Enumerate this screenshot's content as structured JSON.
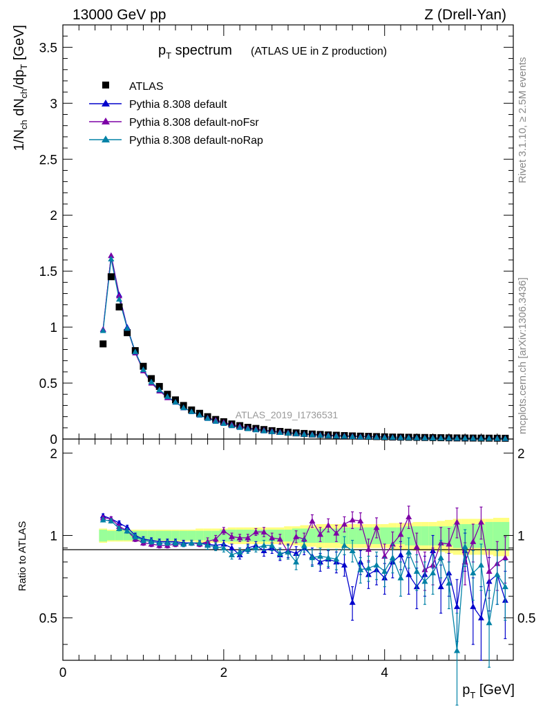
{
  "header": {
    "left": "13000 GeV pp",
    "right": "Z (Drell-Yan)"
  },
  "title": {
    "main": "p",
    "main_sub": "T",
    "main_rest": " spectrum",
    "subtitle": "(ATLAS UE in Z production)"
  },
  "side_text": {
    "rivet": "Rivet 3.1.10, ≥ 2.5M events",
    "mcplots": "mcplots.cern.ch [arXiv:1306.3436]"
  },
  "watermark": "ATLAS_2019_I1736531",
  "axes": {
    "top_ylabel": "1/N_ch dN_ch/dp_T [GeV]",
    "bottom_ylabel": "Ratio to ATLAS",
    "xlabel": "p_T [GeV]",
    "top_yticks": [
      "0",
      "0.5",
      "1",
      "1.5",
      "2",
      "2.5",
      "3",
      "3.5"
    ],
    "bottom_yticks": [
      "0.5",
      "1",
      "2"
    ],
    "xticks": [
      "0",
      "2",
      "4"
    ]
  },
  "colors": {
    "data": "#000000",
    "default": "#0000cc",
    "noFsr": "#7d00a6",
    "noRap": "#0082a6",
    "band_inner": "#99ff99",
    "band_outer": "#ffff80"
  },
  "chart_data": [
    {
      "type": "scatter",
      "title": "p_T spectrum (ATLAS UE in Z production)",
      "xlabel": "p_T [GeV]",
      "ylabel": "1/N_ch dN_ch/dp_T [GeV]",
      "xlim": [
        0,
        5.6
      ],
      "ylim": [
        0,
        3.7
      ],
      "x": [
        0.5,
        0.6,
        0.7,
        0.8,
        0.9,
        1.0,
        1.1,
        1.2,
        1.3,
        1.4,
        1.5,
        1.6,
        1.7,
        1.8,
        1.9,
        2.0,
        2.1,
        2.2,
        2.3,
        2.4,
        2.5,
        2.6,
        2.7,
        2.8,
        2.9,
        3.0,
        3.1,
        3.2,
        3.3,
        3.4,
        3.5,
        3.6,
        3.7,
        3.8,
        3.9,
        4.0,
        4.1,
        4.2,
        4.3,
        4.4,
        4.5,
        4.6,
        4.7,
        4.8,
        4.9,
        5.0,
        5.1,
        5.2,
        5.3,
        5.4,
        5.5
      ],
      "series": [
        {
          "name": "ATLAS",
          "values": [
            0.85,
            1.45,
            1.18,
            0.95,
            0.79,
            0.65,
            0.54,
            0.47,
            0.4,
            0.35,
            0.3,
            0.26,
            0.23,
            0.2,
            0.175,
            0.155,
            0.135,
            0.12,
            0.105,
            0.095,
            0.085,
            0.075,
            0.068,
            0.061,
            0.055,
            0.05,
            0.045,
            0.041,
            0.037,
            0.034,
            0.031,
            0.028,
            0.026,
            0.024,
            0.022,
            0.02,
            0.018,
            0.017,
            0.016,
            0.015,
            0.014,
            0.013,
            0.012,
            0.011,
            0.01,
            0.0095,
            0.009,
            0.0085,
            0.008,
            0.0075,
            0.007
          ]
        },
        {
          "name": "Pythia 8.308 default",
          "values": [
            0.98,
            1.64,
            1.29,
            1.0,
            0.78,
            0.62,
            0.51,
            0.44,
            0.38,
            0.33,
            0.28,
            0.245,
            0.215,
            0.185,
            0.16,
            0.14,
            0.12,
            0.105,
            0.093,
            0.083,
            0.074,
            0.066,
            0.059,
            0.053,
            0.048,
            0.043,
            0.039,
            0.035,
            0.031,
            0.028,
            0.026,
            0.023,
            0.021,
            0.019,
            0.018,
            0.016,
            0.015,
            0.014,
            0.013,
            0.012,
            0.011,
            0.01,
            0.0095,
            0.009,
            0.0085,
            0.008,
            0.0075,
            0.007,
            0.0065,
            0.006,
            0.0055
          ]
        },
        {
          "name": "Pythia 8.308 default-noFsr",
          "values": [
            0.98,
            1.64,
            1.28,
            0.99,
            0.77,
            0.61,
            0.5,
            0.43,
            0.37,
            0.33,
            0.28,
            0.245,
            0.215,
            0.19,
            0.17,
            0.15,
            0.13,
            0.115,
            0.1,
            0.09,
            0.08,
            0.072,
            0.065,
            0.058,
            0.052,
            0.047,
            0.043,
            0.039,
            0.035,
            0.032,
            0.029,
            0.027,
            0.025,
            0.023,
            0.021,
            0.019,
            0.017,
            0.016,
            0.015,
            0.014,
            0.013,
            0.012,
            0.011,
            0.0105,
            0.01,
            0.0095,
            0.009,
            0.0085,
            0.008,
            0.0075,
            0.007
          ]
        },
        {
          "name": "Pythia 8.308 default-noRap",
          "values": [
            0.97,
            1.61,
            1.25,
            0.99,
            0.78,
            0.62,
            0.51,
            0.44,
            0.38,
            0.33,
            0.28,
            0.245,
            0.215,
            0.185,
            0.16,
            0.14,
            0.12,
            0.105,
            0.093,
            0.083,
            0.074,
            0.066,
            0.059,
            0.053,
            0.048,
            0.043,
            0.039,
            0.035,
            0.031,
            0.028,
            0.026,
            0.023,
            0.021,
            0.019,
            0.018,
            0.016,
            0.015,
            0.014,
            0.013,
            0.012,
            0.011,
            0.01,
            0.0095,
            0.009,
            0.0085,
            0.008,
            0.0075,
            0.007,
            0.0065,
            0.006,
            0.0055
          ]
        }
      ]
    },
    {
      "type": "line",
      "title": "",
      "xlabel": "p_T [GeV]",
      "ylabel": "Ratio to ATLAS",
      "xlim": [
        0,
        5.6
      ],
      "ylim": [
        0.35,
        2.25
      ],
      "x": [
        0.5,
        0.6,
        0.7,
        0.8,
        0.9,
        1.0,
        1.1,
        1.2,
        1.3,
        1.4,
        1.5,
        1.6,
        1.7,
        1.8,
        1.9,
        2.0,
        2.1,
        2.2,
        2.3,
        2.4,
        2.5,
        2.6,
        2.7,
        2.8,
        2.9,
        3.0,
        3.1,
        3.2,
        3.3,
        3.4,
        3.5,
        3.6,
        3.7,
        3.8,
        3.9,
        4.0,
        4.1,
        4.2,
        4.3,
        4.4,
        4.5,
        4.6,
        4.7,
        4.8,
        4.9,
        5.0,
        5.1,
        5.2,
        5.3,
        5.4,
        5.5
      ],
      "band_inner": [
        0.05,
        0.04,
        0.04,
        0.04,
        0.04,
        0.04,
        0.04,
        0.04,
        0.04,
        0.04,
        0.04,
        0.04,
        0.04,
        0.04,
        0.04,
        0.05,
        0.05,
        0.05,
        0.05,
        0.05,
        0.05,
        0.05,
        0.05,
        0.05,
        0.06,
        0.06,
        0.06,
        0.06,
        0.06,
        0.06,
        0.07,
        0.07,
        0.07,
        0.07,
        0.07,
        0.07,
        0.07,
        0.07,
        0.08,
        0.08,
        0.08,
        0.08,
        0.08,
        0.08,
        0.1,
        0.1,
        0.1,
        0.1,
        0.12,
        0.12,
        0.12
      ],
      "band_outer": [
        0.06,
        0.05,
        0.05,
        0.05,
        0.05,
        0.05,
        0.05,
        0.05,
        0.05,
        0.05,
        0.05,
        0.05,
        0.06,
        0.06,
        0.06,
        0.06,
        0.07,
        0.07,
        0.07,
        0.07,
        0.07,
        0.07,
        0.07,
        0.08,
        0.08,
        0.09,
        0.09,
        0.1,
        0.1,
        0.1,
        0.1,
        0.1,
        0.1,
        0.1,
        0.1,
        0.1,
        0.11,
        0.11,
        0.11,
        0.12,
        0.12,
        0.12,
        0.13,
        0.14,
        0.15,
        0.15,
        0.15,
        0.15,
        0.15,
        0.16,
        0.16
      ],
      "series": [
        {
          "name": "Pythia 8.308 default",
          "values": [
            1.18,
            1.15,
            1.11,
            1.07,
            1.0,
            0.97,
            0.96,
            0.95,
            0.95,
            0.95,
            0.94,
            0.94,
            0.94,
            0.93,
            0.92,
            0.93,
            0.9,
            0.85,
            0.9,
            0.92,
            0.88,
            0.9,
            0.85,
            0.88,
            0.86,
            0.9,
            0.84,
            0.8,
            0.82,
            0.8,
            0.78,
            0.57,
            0.8,
            0.72,
            0.75,
            0.7,
            0.8,
            0.85,
            0.72,
            0.65,
            0.72,
            0.88,
            0.65,
            0.73,
            0.55,
            0.88,
            0.55,
            0.5,
            0.68,
            0.72,
            0.58
          ],
          "errors": [
            0.02,
            0.02,
            0.02,
            0.02,
            0.02,
            0.02,
            0.02,
            0.02,
            0.02,
            0.02,
            0.02,
            0.02,
            0.02,
            0.02,
            0.03,
            0.03,
            0.03,
            0.03,
            0.03,
            0.03,
            0.04,
            0.04,
            0.04,
            0.05,
            0.05,
            0.05,
            0.06,
            0.06,
            0.06,
            0.07,
            0.07,
            0.08,
            0.08,
            0.08,
            0.09,
            0.09,
            0.1,
            0.1,
            0.11,
            0.11,
            0.12,
            0.12,
            0.13,
            0.13,
            0.14,
            0.14,
            0.15,
            0.15,
            0.15,
            0.16,
            0.16
          ]
        },
        {
          "name": "Pythia 8.308 default-noFsr",
          "values": [
            1.16,
            1.15,
            1.08,
            1.04,
            0.97,
            0.94,
            0.93,
            0.92,
            0.92,
            0.93,
            0.93,
            0.94,
            0.93,
            0.95,
            0.97,
            1.04,
            0.99,
            0.98,
            0.98,
            1.03,
            1.03,
            0.98,
            0.97,
            0.87,
            0.99,
            0.97,
            1.13,
            1.01,
            1.09,
            1.02,
            1.1,
            1.14,
            1.13,
            0.89,
            1.07,
            0.84,
            0.93,
            1.01,
            1.17,
            0.91,
            0.75,
            0.78,
            0.94,
            0.93,
            1.12,
            0.8,
            0.95,
            1.12,
            0.74,
            0.79,
            0.83
          ],
          "errors": [
            0.02,
            0.02,
            0.02,
            0.02,
            0.02,
            0.02,
            0.02,
            0.02,
            0.02,
            0.02,
            0.02,
            0.02,
            0.02,
            0.03,
            0.03,
            0.03,
            0.03,
            0.03,
            0.03,
            0.03,
            0.04,
            0.04,
            0.04,
            0.05,
            0.05,
            0.05,
            0.06,
            0.06,
            0.06,
            0.07,
            0.07,
            0.08,
            0.08,
            0.08,
            0.09,
            0.09,
            0.1,
            0.1,
            0.11,
            0.11,
            0.12,
            0.12,
            0.13,
            0.13,
            0.14,
            0.14,
            0.15,
            0.15,
            0.15,
            0.16,
            0.16
          ]
        },
        {
          "name": "Pythia 8.308 default-noRap",
          "values": [
            1.14,
            1.13,
            1.06,
            1.04,
            0.99,
            0.96,
            0.95,
            0.94,
            0.94,
            0.94,
            0.93,
            0.94,
            0.94,
            0.92,
            0.91,
            0.9,
            0.85,
            0.87,
            0.89,
            0.9,
            0.92,
            0.92,
            0.86,
            0.87,
            0.8,
            0.92,
            0.83,
            0.84,
            0.83,
            0.82,
            0.92,
            0.88,
            0.75,
            0.76,
            0.78,
            0.74,
            0.83,
            0.7,
            0.87,
            0.74,
            0.68,
            0.73,
            0.83,
            0.67,
            0.38,
            0.91,
            0.73,
            0.78,
            0.48,
            0.72,
            0.65
          ],
          "errors": [
            0.02,
            0.02,
            0.02,
            0.02,
            0.02,
            0.02,
            0.02,
            0.02,
            0.02,
            0.02,
            0.02,
            0.02,
            0.02,
            0.03,
            0.03,
            0.03,
            0.03,
            0.03,
            0.03,
            0.03,
            0.04,
            0.04,
            0.04,
            0.05,
            0.05,
            0.05,
            0.06,
            0.06,
            0.06,
            0.07,
            0.07,
            0.08,
            0.08,
            0.08,
            0.09,
            0.09,
            0.1,
            0.1,
            0.11,
            0.11,
            0.12,
            0.12,
            0.13,
            0.13,
            0.14,
            0.14,
            0.15,
            0.15,
            0.15,
            0.16,
            0.16
          ]
        }
      ]
    }
  ]
}
